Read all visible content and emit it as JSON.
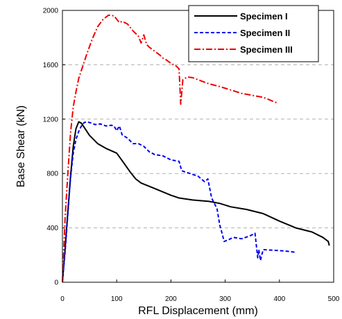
{
  "chart_data": {
    "type": "line",
    "title": "",
    "xlabel": "RFL Displacement (mm)",
    "ylabel": "Base Shear (kN)",
    "xlim": [
      0,
      500
    ],
    "ylim": [
      0,
      2000
    ],
    "xticks": [
      "0",
      "100",
      "200",
      "300",
      "400",
      "500"
    ],
    "yticks": [
      "0",
      "400",
      "800",
      "1200",
      "1600",
      "2000"
    ],
    "grid": "horizontal dashed",
    "legend_position": "top-right",
    "series": [
      {
        "name": "Specimen I",
        "color": "#000000",
        "dash": "solid",
        "x": [
          0,
          5,
          10,
          15,
          20,
          25,
          30,
          35,
          40,
          50,
          65,
          80,
          100,
          110,
          125,
          135,
          145,
          170,
          200,
          215,
          240,
          270,
          290,
          310,
          340,
          370,
          400,
          430,
          460,
          480,
          490,
          492
        ],
        "y": [
          0,
          250,
          520,
          780,
          1000,
          1130,
          1180,
          1170,
          1140,
          1080,
          1020,
          985,
          950,
          895,
          810,
          760,
          730,
          690,
          640,
          620,
          605,
          595,
          580,
          555,
          535,
          505,
          450,
          400,
          370,
          330,
          300,
          270
        ]
      },
      {
        "name": "Specimen II",
        "color": "#0000ee",
        "dash": "dashed",
        "x": [
          0,
          5,
          10,
          15,
          20,
          25,
          30,
          35,
          40,
          45,
          50,
          60,
          70,
          80,
          90,
          95,
          100,
          105,
          110,
          120,
          130,
          140,
          150,
          160,
          170,
          185,
          200,
          215,
          220,
          235,
          250,
          262,
          268,
          275,
          285,
          290,
          295,
          298,
          305,
          315,
          330,
          345,
          355,
          360,
          362,
          365,
          370,
          390,
          410,
          430
        ],
        "y": [
          0,
          230,
          500,
          770,
          950,
          1050,
          1110,
          1150,
          1175,
          1180,
          1175,
          1160,
          1165,
          1150,
          1155,
          1150,
          1115,
          1150,
          1085,
          1060,
          1020,
          1020,
          1000,
          960,
          940,
          930,
          900,
          890,
          820,
          800,
          780,
          740,
          760,
          620,
          540,
          420,
          350,
          300,
          310,
          330,
          320,
          340,
          360,
          180,
          240,
          160,
          240,
          235,
          230,
          220
        ]
      },
      {
        "name": "Specimen III",
        "color": "#ee0000",
        "dash": "dashdot",
        "x": [
          0,
          5,
          10,
          15,
          20,
          25,
          30,
          35,
          45,
          55,
          65,
          75,
          85,
          95,
          105,
          110,
          120,
          130,
          140,
          145,
          150,
          155,
          160,
          170,
          180,
          185,
          190,
          200,
          210,
          215,
          218,
          222,
          230,
          240,
          250,
          270,
          290,
          310,
          330,
          350,
          370,
          380,
          395
        ],
        "y": [
          0,
          480,
          800,
          1100,
          1290,
          1400,
          1500,
          1560,
          1680,
          1790,
          1880,
          1935,
          1965,
          1960,
          1910,
          1920,
          1900,
          1850,
          1810,
          1760,
          1820,
          1750,
          1730,
          1700,
          1670,
          1650,
          1640,
          1610,
          1590,
          1570,
          1310,
          1490,
          1510,
          1505,
          1490,
          1460,
          1440,
          1415,
          1390,
          1375,
          1360,
          1345,
          1320
        ]
      }
    ]
  }
}
